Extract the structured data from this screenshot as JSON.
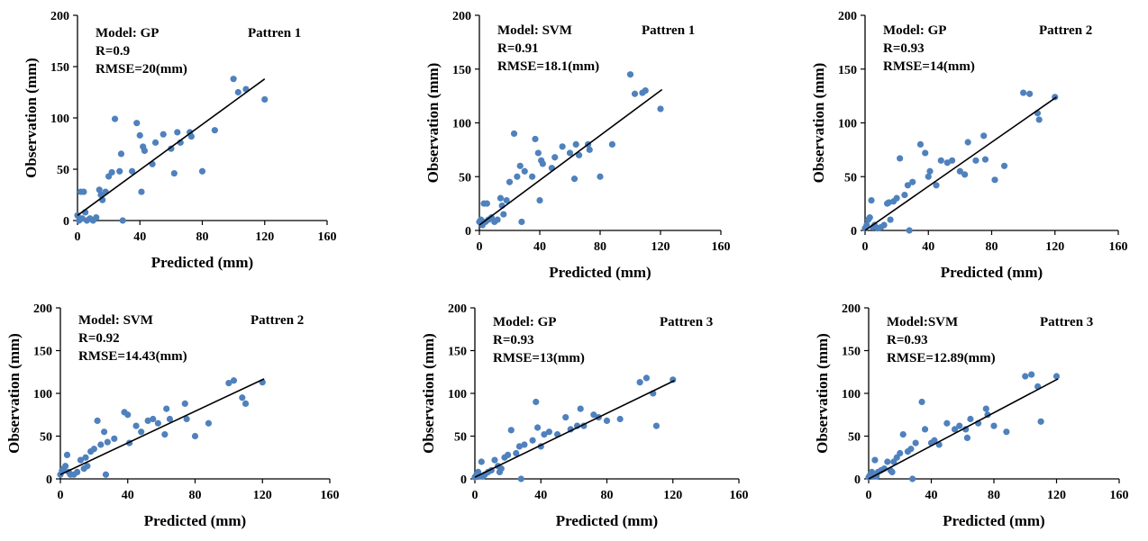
{
  "chart_data": [
    {
      "type": "scatter",
      "xlabel": "Predicted (mm)",
      "ylabel": "Observation (mm)",
      "xlim": [
        0,
        160
      ],
      "ylim": [
        0,
        200
      ],
      "xticks": [
        "0",
        "40",
        "80",
        "120",
        "160"
      ],
      "yticks": [
        "0",
        "50",
        "100",
        "150",
        "200"
      ],
      "annotations": {
        "model": "Model: GP",
        "pattern": "Pattren 1",
        "r": "R=0.9",
        "rmse": "RMSE=20(mm)"
      },
      "colors": {
        "points": "#4f81bd",
        "fit": "#000000"
      },
      "fit_line": {
        "x": [
          0,
          120
        ],
        "y": [
          5,
          138
        ]
      },
      "points": [
        [
          0,
          5
        ],
        [
          1,
          0
        ],
        [
          2,
          28
        ],
        [
          3,
          2
        ],
        [
          4,
          28
        ],
        [
          5,
          8
        ],
        [
          6,
          0
        ],
        [
          8,
          2
        ],
        [
          10,
          0
        ],
        [
          12,
          3
        ],
        [
          14,
          30
        ],
        [
          15,
          25
        ],
        [
          16,
          20
        ],
        [
          18,
          28
        ],
        [
          20,
          43
        ],
        [
          22,
          47
        ],
        [
          24,
          99
        ],
        [
          27,
          48
        ],
        [
          28,
          65
        ],
        [
          29,
          0
        ],
        [
          35,
          48
        ],
        [
          38,
          95
        ],
        [
          40,
          83
        ],
        [
          41,
          28
        ],
        [
          42,
          72
        ],
        [
          43,
          68
        ],
        [
          48,
          55
        ],
        [
          50,
          76
        ],
        [
          55,
          84
        ],
        [
          60,
          70
        ],
        [
          62,
          46
        ],
        [
          64,
          86
        ],
        [
          66,
          76
        ],
        [
          72,
          86
        ],
        [
          73,
          82
        ],
        [
          80,
          48
        ],
        [
          88,
          88
        ],
        [
          100,
          138
        ],
        [
          103,
          125
        ],
        [
          108,
          128
        ],
        [
          120,
          118
        ]
      ]
    },
    {
      "type": "scatter",
      "xlabel": "Predicted (mm)",
      "ylabel": "Observation (mm)",
      "xlim": [
        0,
        160
      ],
      "ylim": [
        0,
        200
      ],
      "xticks": [
        "0",
        "40",
        "80",
        "120",
        "160"
      ],
      "yticks": [
        "0",
        "50",
        "100",
        "150",
        "200"
      ],
      "annotations": {
        "model": "Model: SVM",
        "pattern": "Pattren 1",
        "r": "R=0.91",
        "rmse": "RMSE=18.1(mm)"
      },
      "colors": {
        "points": "#4f81bd",
        "fit": "#000000"
      },
      "fit_line": {
        "x": [
          0,
          121
        ],
        "y": [
          5,
          131
        ]
      },
      "points": [
        [
          0,
          8
        ],
        [
          1,
          10
        ],
        [
          2,
          5
        ],
        [
          3,
          25
        ],
        [
          4,
          8
        ],
        [
          5,
          25
        ],
        [
          6,
          10
        ],
        [
          8,
          12
        ],
        [
          10,
          8
        ],
        [
          12,
          10
        ],
        [
          14,
          30
        ],
        [
          15,
          23
        ],
        [
          16,
          15
        ],
        [
          18,
          28
        ],
        [
          20,
          45
        ],
        [
          23,
          90
        ],
        [
          25,
          50
        ],
        [
          27,
          60
        ],
        [
          28,
          8
        ],
        [
          30,
          55
        ],
        [
          35,
          50
        ],
        [
          37,
          85
        ],
        [
          39,
          72
        ],
        [
          40,
          28
        ],
        [
          41,
          65
        ],
        [
          42,
          62
        ],
        [
          48,
          58
        ],
        [
          50,
          68
        ],
        [
          55,
          78
        ],
        [
          60,
          72
        ],
        [
          63,
          48
        ],
        [
          64,
          80
        ],
        [
          66,
          70
        ],
        [
          72,
          80
        ],
        [
          73,
          75
        ],
        [
          80,
          50
        ],
        [
          88,
          80
        ],
        [
          100,
          145
        ],
        [
          103,
          127
        ],
        [
          108,
          128
        ],
        [
          110,
          130
        ],
        [
          120,
          113
        ]
      ]
    },
    {
      "type": "scatter",
      "xlabel": "Predicted (mm)",
      "ylabel": "Observation (mm)",
      "xlim": [
        0,
        160
      ],
      "ylim": [
        0,
        200
      ],
      "xticks": [
        "0",
        "40",
        "80",
        "120",
        "160"
      ],
      "yticks": [
        "0",
        "50",
        "100",
        "150",
        "200"
      ],
      "annotations": {
        "model": "Model: GP",
        "pattern": "Pattren 2",
        "r": "R=0.93",
        "rmse": "RMSE=14(mm)"
      },
      "colors": {
        "points": "#4f81bd",
        "fit": "#000000"
      },
      "fit_line": {
        "x": [
          0,
          121
        ],
        "y": [
          0,
          124
        ]
      },
      "points": [
        [
          0,
          2
        ],
        [
          1,
          5
        ],
        [
          2,
          10
        ],
        [
          3,
          12
        ],
        [
          4,
          28
        ],
        [
          5,
          3
        ],
        [
          6,
          5
        ],
        [
          8,
          2
        ],
        [
          10,
          3
        ],
        [
          12,
          5
        ],
        [
          14,
          25
        ],
        [
          15,
          26
        ],
        [
          16,
          10
        ],
        [
          18,
          27
        ],
        [
          20,
          30
        ],
        [
          22,
          67
        ],
        [
          25,
          33
        ],
        [
          27,
          42
        ],
        [
          28,
          0
        ],
        [
          30,
          45
        ],
        [
          35,
          80
        ],
        [
          38,
          72
        ],
        [
          40,
          50
        ],
        [
          41,
          55
        ],
        [
          45,
          42
        ],
        [
          48,
          65
        ],
        [
          52,
          63
        ],
        [
          55,
          65
        ],
        [
          60,
          55
        ],
        [
          63,
          52
        ],
        [
          65,
          82
        ],
        [
          70,
          65
        ],
        [
          75,
          88
        ],
        [
          76,
          66
        ],
        [
          82,
          47
        ],
        [
          88,
          60
        ],
        [
          100,
          128
        ],
        [
          104,
          127
        ],
        [
          109,
          109
        ],
        [
          110,
          103
        ],
        [
          120,
          124
        ]
      ]
    },
    {
      "type": "scatter",
      "xlabel": "Predicted (mm)",
      "ylabel": "Observation (mm)",
      "xlim": [
        0,
        160
      ],
      "ylim": [
        0,
        200
      ],
      "xticks": [
        "0",
        "40",
        "80",
        "120",
        "160"
      ],
      "yticks": [
        "0",
        "50",
        "100",
        "150",
        "200"
      ],
      "annotations": {
        "model": "Model: SVM",
        "pattern": "Pattren  2",
        "r": "R=0.92",
        "rmse": "RMSE=14.43(mm)"
      },
      "colors": {
        "points": "#4f81bd",
        "fit": "#000000"
      },
      "fit_line": {
        "x": [
          0,
          121
        ],
        "y": [
          5,
          117
        ]
      },
      "points": [
        [
          0,
          5
        ],
        [
          1,
          10
        ],
        [
          2,
          12
        ],
        [
          3,
          15
        ],
        [
          4,
          28
        ],
        [
          5,
          8
        ],
        [
          6,
          5
        ],
        [
          8,
          5
        ],
        [
          10,
          8
        ],
        [
          12,
          22
        ],
        [
          14,
          12
        ],
        [
          15,
          25
        ],
        [
          16,
          15
        ],
        [
          18,
          32
        ],
        [
          20,
          35
        ],
        [
          22,
          68
        ],
        [
          24,
          40
        ],
        [
          26,
          55
        ],
        [
          27,
          5
        ],
        [
          28,
          43
        ],
        [
          32,
          47
        ],
        [
          38,
          78
        ],
        [
          40,
          75
        ],
        [
          41,
          42
        ],
        [
          45,
          62
        ],
        [
          48,
          55
        ],
        [
          52,
          68
        ],
        [
          55,
          70
        ],
        [
          58,
          65
        ],
        [
          62,
          52
        ],
        [
          63,
          82
        ],
        [
          65,
          70
        ],
        [
          74,
          88
        ],
        [
          75,
          70
        ],
        [
          80,
          50
        ],
        [
          88,
          65
        ],
        [
          100,
          112
        ],
        [
          103,
          115
        ],
        [
          108,
          95
        ],
        [
          110,
          88
        ],
        [
          120,
          113
        ]
      ]
    },
    {
      "type": "scatter",
      "xlabel": "Predicted (mm)",
      "ylabel": "Observation (mm)",
      "xlim": [
        0,
        160
      ],
      "ylim": [
        0,
        200
      ],
      "xticks": [
        "0",
        "40",
        "80",
        "120",
        "160"
      ],
      "yticks": [
        "0",
        "50",
        "100",
        "150",
        "200"
      ],
      "annotations": {
        "model": "Model: GP",
        "pattern": "Pattren  3",
        "r": "R=0.93",
        "rmse": "RMSE=13(mm)"
      },
      "colors": {
        "points": "#4f81bd",
        "fit": "#000000"
      },
      "fit_line": {
        "x": [
          0,
          121
        ],
        "y": [
          2,
          115
        ]
      },
      "points": [
        [
          0,
          2
        ],
        [
          1,
          5
        ],
        [
          2,
          8
        ],
        [
          3,
          3
        ],
        [
          4,
          20
        ],
        [
          5,
          3
        ],
        [
          6,
          5
        ],
        [
          8,
          8
        ],
        [
          10,
          10
        ],
        [
          12,
          22
        ],
        [
          14,
          15
        ],
        [
          15,
          8
        ],
        [
          16,
          12
        ],
        [
          18,
          25
        ],
        [
          20,
          28
        ],
        [
          22,
          57
        ],
        [
          25,
          30
        ],
        [
          27,
          38
        ],
        [
          28,
          0
        ],
        [
          30,
          40
        ],
        [
          35,
          45
        ],
        [
          37,
          90
        ],
        [
          38,
          60
        ],
        [
          40,
          38
        ],
        [
          42,
          52
        ],
        [
          45,
          55
        ],
        [
          50,
          52
        ],
        [
          55,
          72
        ],
        [
          58,
          58
        ],
        [
          62,
          62
        ],
        [
          64,
          82
        ],
        [
          66,
          62
        ],
        [
          72,
          75
        ],
        [
          75,
          72
        ],
        [
          80,
          68
        ],
        [
          88,
          70
        ],
        [
          100,
          113
        ],
        [
          104,
          118
        ],
        [
          108,
          100
        ],
        [
          110,
          62
        ],
        [
          120,
          116
        ]
      ]
    },
    {
      "type": "scatter",
      "xlabel": "Predicted (mm)",
      "ylabel": "Observation (mm)",
      "xlim": [
        0,
        160
      ],
      "ylim": [
        0,
        200
      ],
      "xticks": [
        "0",
        "40",
        "80",
        "120",
        "160"
      ],
      "yticks": [
        "0",
        "50",
        "100",
        "150",
        "200"
      ],
      "annotations": {
        "model": "Model:SVM",
        "pattern": "Pattren 3",
        "r": "R=0.93",
        "rmse": "RMSE=12.89(mm)"
      },
      "colors": {
        "points": "#4f81bd",
        "fit": "#000000"
      },
      "fit_line": {
        "x": [
          0,
          121
        ],
        "y": [
          0,
          117
        ]
      },
      "points": [
        [
          0,
          2
        ],
        [
          1,
          5
        ],
        [
          2,
          8
        ],
        [
          3,
          3
        ],
        [
          4,
          22
        ],
        [
          5,
          3
        ],
        [
          6,
          8
        ],
        [
          8,
          10
        ],
        [
          10,
          12
        ],
        [
          12,
          20
        ],
        [
          14,
          10
        ],
        [
          15,
          8
        ],
        [
          16,
          20
        ],
        [
          18,
          25
        ],
        [
          20,
          30
        ],
        [
          22,
          52
        ],
        [
          25,
          32
        ],
        [
          27,
          35
        ],
        [
          28,
          0
        ],
        [
          30,
          42
        ],
        [
          34,
          90
        ],
        [
          36,
          58
        ],
        [
          40,
          42
        ],
        [
          42,
          45
        ],
        [
          45,
          40
        ],
        [
          50,
          65
        ],
        [
          55,
          58
        ],
        [
          58,
          62
        ],
        [
          62,
          58
        ],
        [
          63,
          48
        ],
        [
          65,
          70
        ],
        [
          70,
          65
        ],
        [
          75,
          82
        ],
        [
          76,
          75
        ],
        [
          80,
          62
        ],
        [
          88,
          55
        ],
        [
          100,
          120
        ],
        [
          104,
          122
        ],
        [
          108,
          108
        ],
        [
          110,
          67
        ],
        [
          120,
          120
        ]
      ]
    }
  ]
}
